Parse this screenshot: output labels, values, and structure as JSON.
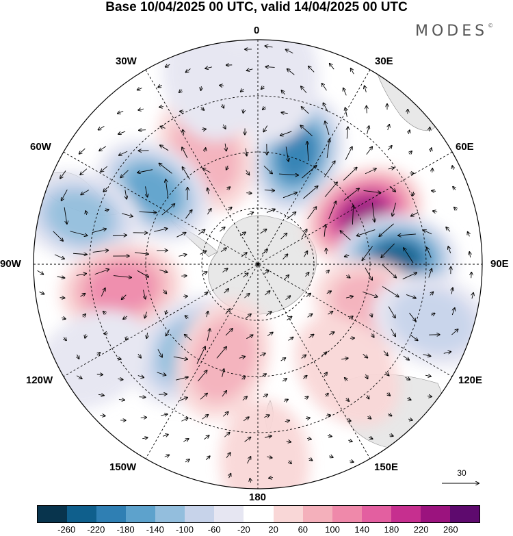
{
  "title": "Base 10/04/2025 00 UTC, valid 14/04/2025 00 UTC",
  "brand": "MODES",
  "brand_mark": "©",
  "longitude_labels": {
    "top": "0",
    "right_top": "30E",
    "right_upper": "60E",
    "right": "90E",
    "right_lower": "120E",
    "right_bottom": "150E",
    "bottom": "180",
    "left_bottom": "150W",
    "left_lower": "120W",
    "left": "90W",
    "left_upper": "60W",
    "left_top": "30W"
  },
  "reference_vector": "30",
  "colorbar": {
    "colors": [
      "#08344d",
      "#0f5f8c",
      "#2f7fb3",
      "#5da2cc",
      "#93bedd",
      "#c7d3ea",
      "#e6e6f2",
      "#ffffff",
      "#f9d7d7",
      "#f4b0bb",
      "#ef89aa",
      "#e35fa0",
      "#c62f8f",
      "#9b137e",
      "#5e0a6e"
    ],
    "ticks": [
      "-260",
      "-220",
      "-180",
      "-140",
      "-100",
      "-60",
      "-20",
      "20",
      "60",
      "100",
      "140",
      "180",
      "220",
      "260"
    ]
  },
  "anomaly_blobs": [
    {
      "lon": 20,
      "colat": 0.52,
      "value": -200
    },
    {
      "lon": 5,
      "colat": 0.82,
      "value": -40
    },
    {
      "lon": -25,
      "colat": 0.55,
      "value": 80
    },
    {
      "lon": 65,
      "colat": 0.52,
      "value": 240
    },
    {
      "lon": 88,
      "colat": 0.62,
      "value": -220
    },
    {
      "lon": 110,
      "colat": 0.55,
      "value": 80
    },
    {
      "lon": 108,
      "colat": 0.82,
      "value": -60
    },
    {
      "lon": 140,
      "colat": 0.62,
      "value": 40
    },
    {
      "lon": -55,
      "colat": 0.57,
      "value": -170
    },
    {
      "lon": -75,
      "colat": 0.82,
      "value": -120
    },
    {
      "lon": -100,
      "colat": 0.62,
      "value": 110
    },
    {
      "lon": -140,
      "colat": 0.5,
      "value": -130
    },
    {
      "lon": -160,
      "colat": 0.45,
      "value": 60
    },
    {
      "lon": 178,
      "colat": 0.88,
      "value": 50
    },
    {
      "lon": -120,
      "colat": 0.85,
      "value": -30
    },
    {
      "lon": -15,
      "colat": 0.85,
      "value": -30
    }
  ],
  "land_color": "#e8e8e8"
}
